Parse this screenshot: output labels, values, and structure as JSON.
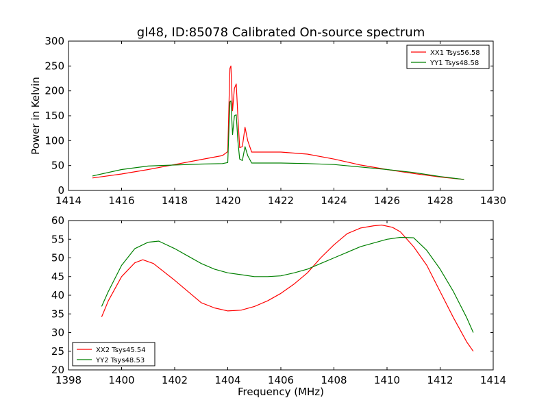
{
  "figure": {
    "title": "gl48, ID:85078 Calibrated On-source spectrum",
    "xlabel": "Frequency (MHz)"
  },
  "chart_data": [
    {
      "type": "line",
      "title": "gl48, ID:85078 Calibrated On-source spectrum",
      "xlabel": "",
      "ylabel": "Power in Kelvin",
      "xlim": [
        1414,
        1430
      ],
      "ylim": [
        0,
        300
      ],
      "xticks": [
        "1414",
        "1416",
        "1418",
        "1420",
        "1422",
        "1424",
        "1426",
        "1428",
        "1430"
      ],
      "yticks": [
        "0",
        "50",
        "100",
        "150",
        "200",
        "250",
        "300"
      ],
      "grid": false,
      "legend_position": "top-right",
      "series": [
        {
          "name": "XX1 Tsys56.58",
          "color": "#ff0000",
          "x": [
            1414.9,
            1416.0,
            1417.0,
            1418.0,
            1419.0,
            1419.8,
            1420.0,
            1420.08,
            1420.12,
            1420.18,
            1420.25,
            1420.32,
            1420.38,
            1420.45,
            1420.55,
            1420.65,
            1420.75,
            1420.9,
            1421.5,
            1422.0,
            1423.0,
            1424.0,
            1425.0,
            1426.0,
            1427.0,
            1428.0,
            1428.9
          ],
          "y": [
            25,
            33,
            42,
            52,
            62,
            70,
            78,
            245,
            250,
            160,
            205,
            214,
            150,
            86,
            88,
            127,
            100,
            77,
            77,
            77,
            73,
            63,
            51,
            42,
            34,
            27,
            22
          ]
        },
        {
          "name": "YY1 Tsys48.58",
          "color": "#008000",
          "x": [
            1414.9,
            1416.0,
            1417.0,
            1418.0,
            1419.0,
            1419.8,
            1420.0,
            1420.08,
            1420.12,
            1420.18,
            1420.25,
            1420.32,
            1420.38,
            1420.45,
            1420.55,
            1420.65,
            1420.75,
            1420.9,
            1421.5,
            1422.0,
            1423.0,
            1424.0,
            1425.0,
            1426.0,
            1427.0,
            1428.0,
            1428.9
          ],
          "y": [
            29,
            42,
            49,
            51,
            53,
            54,
            56,
            178,
            180,
            112,
            150,
            152,
            100,
            63,
            60,
            88,
            70,
            55,
            55,
            55,
            54,
            52,
            47,
            42,
            36,
            28,
            22
          ]
        }
      ]
    },
    {
      "type": "line",
      "title": "",
      "xlabel": "Frequency (MHz)",
      "ylabel": "",
      "xlim": [
        1398,
        1414
      ],
      "ylim": [
        20,
        60
      ],
      "xticks": [
        "1398",
        "1400",
        "1402",
        "1404",
        "1406",
        "1408",
        "1410",
        "1412",
        "1414"
      ],
      "yticks": [
        "20",
        "25",
        "30",
        "35",
        "40",
        "45",
        "50",
        "55",
        "60"
      ],
      "grid": false,
      "legend_position": "bottom-left",
      "series": [
        {
          "name": "XX2 Tsys45.54",
          "color": "#ff0000",
          "x": [
            1399.25,
            1399.5,
            1400.0,
            1400.5,
            1400.8,
            1401.2,
            1402.0,
            1402.5,
            1403.0,
            1403.5,
            1404.0,
            1404.5,
            1405.0,
            1405.5,
            1406.0,
            1406.5,
            1407.0,
            1407.5,
            1408.0,
            1408.5,
            1409.0,
            1409.5,
            1409.8,
            1410.2,
            1410.5,
            1411.0,
            1411.5,
            1412.0,
            1412.5,
            1413.0,
            1413.25
          ],
          "y": [
            34.2,
            38.5,
            45,
            48.7,
            49.5,
            48.5,
            44,
            41,
            38,
            36.6,
            35.8,
            36,
            37,
            38.5,
            40.5,
            43,
            46,
            50,
            53.5,
            56.5,
            58,
            58.6,
            58.8,
            58.2,
            57,
            53,
            48,
            41,
            34,
            27.5,
            25
          ]
        },
        {
          "name": "YY2 Tsys48.53",
          "color": "#008000",
          "x": [
            1399.25,
            1399.5,
            1400.0,
            1400.5,
            1401.0,
            1401.4,
            1402.0,
            1402.5,
            1403.0,
            1403.5,
            1404.0,
            1404.5,
            1405.0,
            1405.5,
            1406.0,
            1406.5,
            1407.0,
            1407.5,
            1408.0,
            1408.5,
            1409.0,
            1409.5,
            1410.0,
            1410.5,
            1411.0,
            1411.5,
            1412.0,
            1412.5,
            1413.0,
            1413.25
          ],
          "y": [
            37,
            41,
            48,
            52.5,
            54.2,
            54.5,
            52.5,
            50.5,
            48.5,
            47,
            46,
            45.5,
            45,
            45,
            45.2,
            46,
            47,
            48.5,
            50,
            51.5,
            53,
            54,
            55,
            55.5,
            55.4,
            52,
            47,
            41,
            34,
            30
          ]
        }
      ]
    }
  ]
}
